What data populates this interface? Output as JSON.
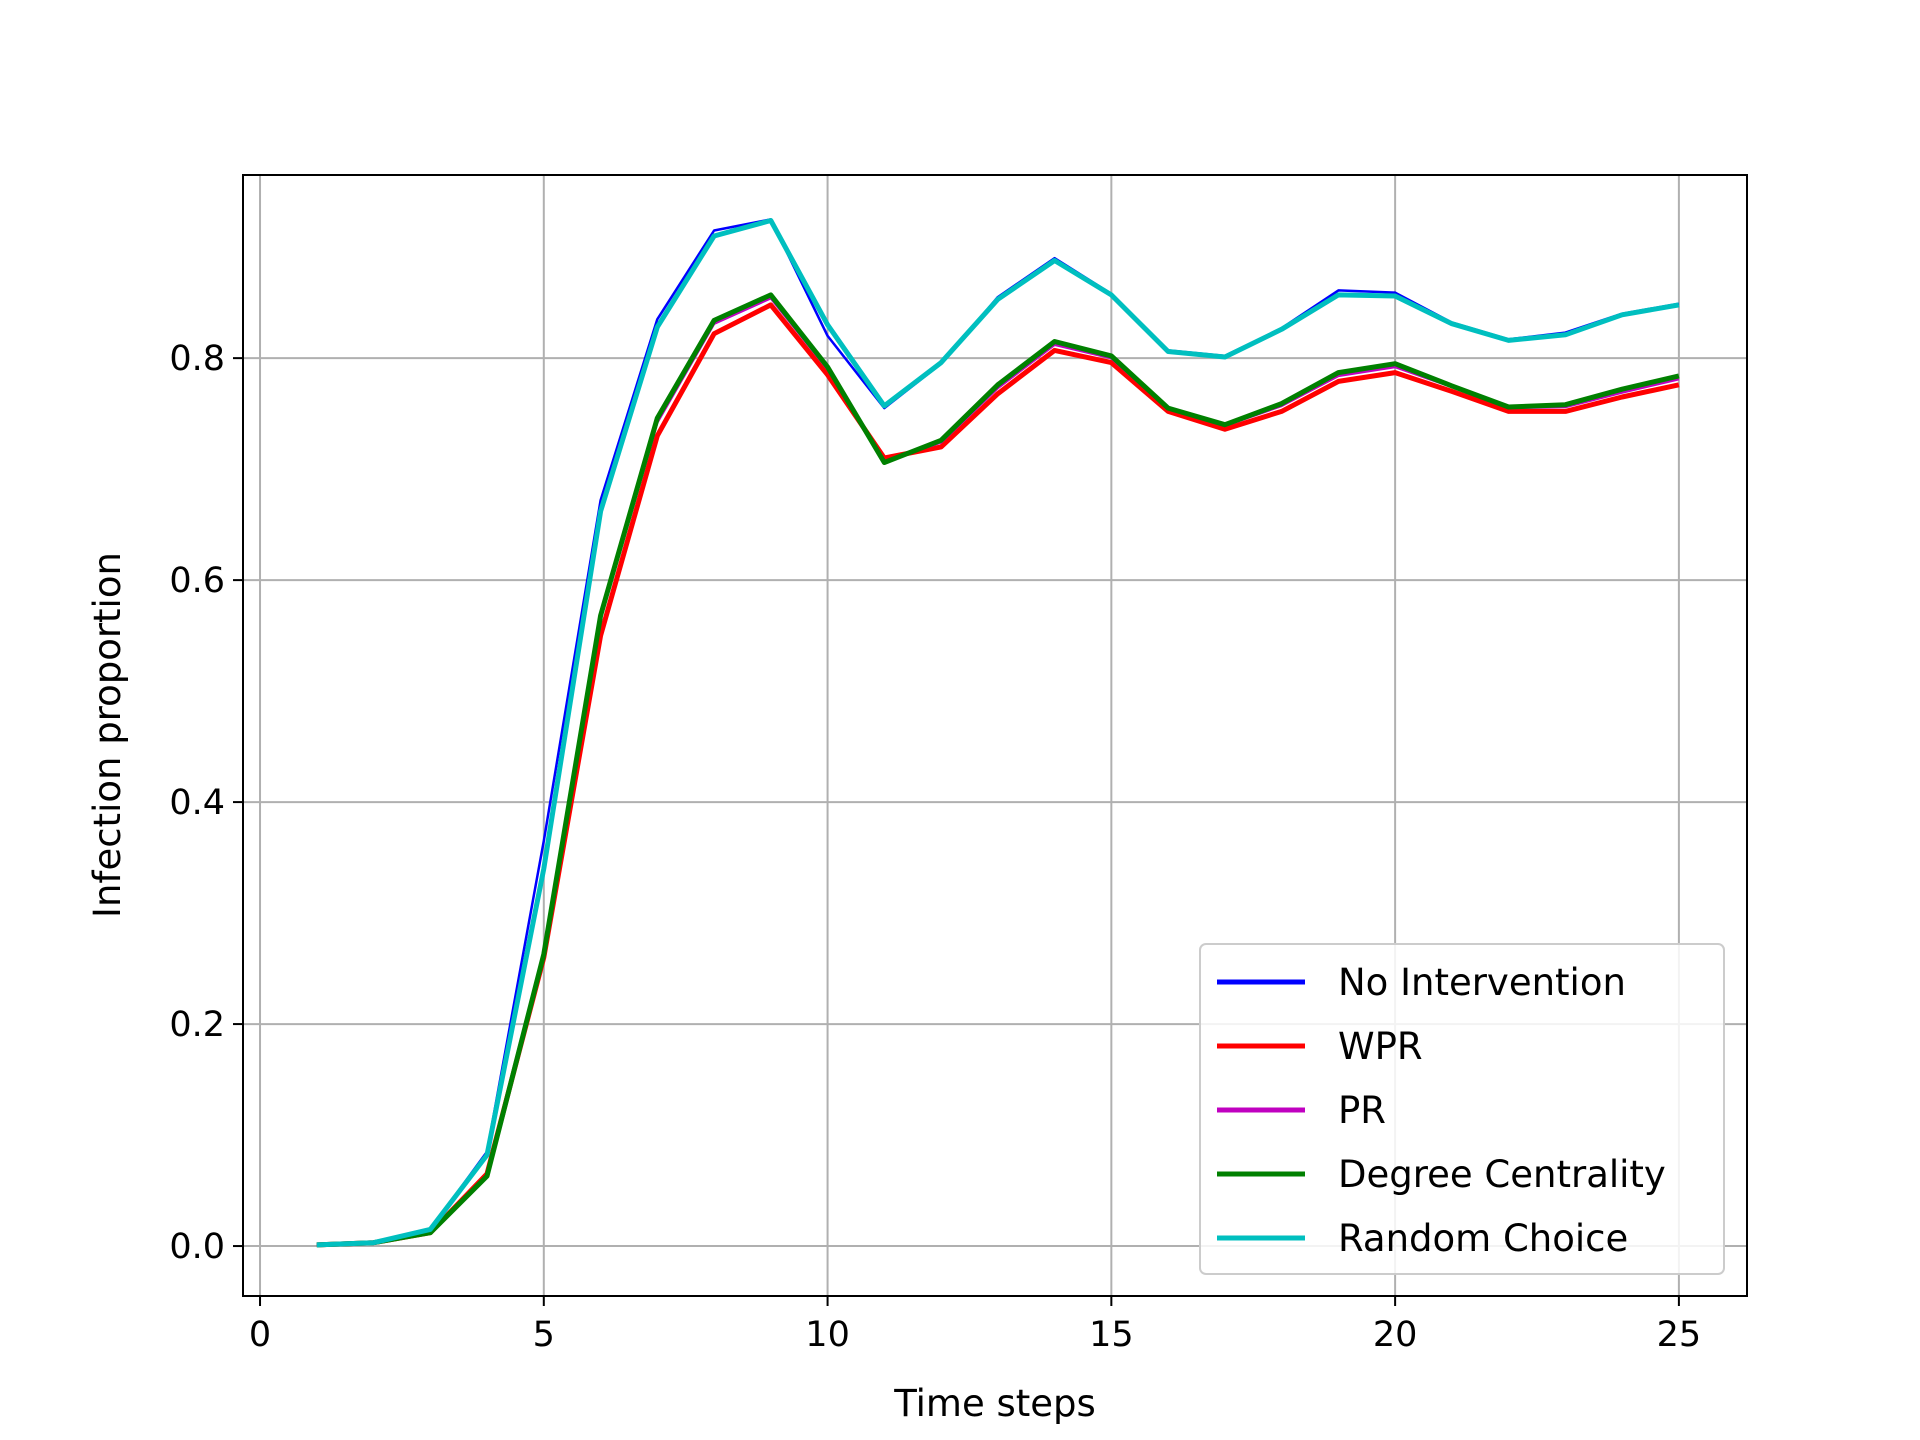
{
  "chart_data": {
    "type": "line",
    "title": "",
    "xlabel": "Time steps",
    "ylabel": "Infection proportion",
    "xlim": [
      -0.3,
      26.2
    ],
    "ylim": [
      -0.045,
      0.965
    ],
    "xticks": [
      0,
      5,
      10,
      15,
      20,
      25
    ],
    "xtick_labels": [
      "0",
      "5",
      "10",
      "15",
      "20",
      "25"
    ],
    "yticks": [
      0.0,
      0.2,
      0.4,
      0.6,
      0.8
    ],
    "ytick_labels": [
      "0.0",
      "0.2",
      "0.4",
      "0.6",
      "0.8"
    ],
    "grid": true,
    "legend_position": "lower-right",
    "x": [
      1,
      2,
      3,
      4,
      5,
      6,
      7,
      8,
      9,
      10,
      11,
      12,
      13,
      14,
      15,
      16,
      17,
      18,
      19,
      20,
      21,
      22,
      23,
      24,
      25
    ],
    "series": [
      {
        "name": "No Intervention",
        "color": "#0000ff",
        "values": [
          0.001,
          0.003,
          0.015,
          0.085,
          0.365,
          0.672,
          0.835,
          0.915,
          0.925,
          0.82,
          0.755,
          0.795,
          0.855,
          0.89,
          0.858,
          0.807,
          0.802,
          0.827,
          0.861,
          0.859,
          0.832,
          0.817,
          0.823,
          0.84,
          0.849
        ]
      },
      {
        "name": "WPR",
        "color": "#ff0000",
        "values": [
          0.001,
          0.003,
          0.012,
          0.065,
          0.26,
          0.55,
          0.73,
          0.822,
          0.848,
          0.785,
          0.71,
          0.72,
          0.768,
          0.807,
          0.796,
          0.752,
          0.736,
          0.752,
          0.779,
          0.787,
          0.77,
          0.752,
          0.752,
          0.765,
          0.776
        ]
      },
      {
        "name": "PR",
        "color": "#c000c0",
        "values": [
          0.001,
          0.003,
          0.012,
          0.064,
          0.262,
          0.565,
          0.742,
          0.831,
          0.854,
          0.79,
          0.707,
          0.724,
          0.773,
          0.812,
          0.8,
          0.754,
          0.739,
          0.757,
          0.784,
          0.792,
          0.774,
          0.755,
          0.756,
          0.769,
          0.781
        ]
      },
      {
        "name": "Degree Centrality",
        "color": "#008000",
        "values": [
          0.001,
          0.003,
          0.012,
          0.063,
          0.263,
          0.568,
          0.746,
          0.834,
          0.857,
          0.792,
          0.706,
          0.726,
          0.776,
          0.815,
          0.802,
          0.755,
          0.74,
          0.759,
          0.787,
          0.795,
          0.775,
          0.756,
          0.758,
          0.772,
          0.784
        ]
      },
      {
        "name": "Random Choice",
        "color": "#00bfbf",
        "values": [
          0.001,
          0.003,
          0.015,
          0.082,
          0.34,
          0.662,
          0.828,
          0.91,
          0.924,
          0.83,
          0.757,
          0.796,
          0.853,
          0.888,
          0.857,
          0.806,
          0.801,
          0.826,
          0.857,
          0.856,
          0.831,
          0.816,
          0.821,
          0.839,
          0.848
        ]
      }
    ]
  }
}
